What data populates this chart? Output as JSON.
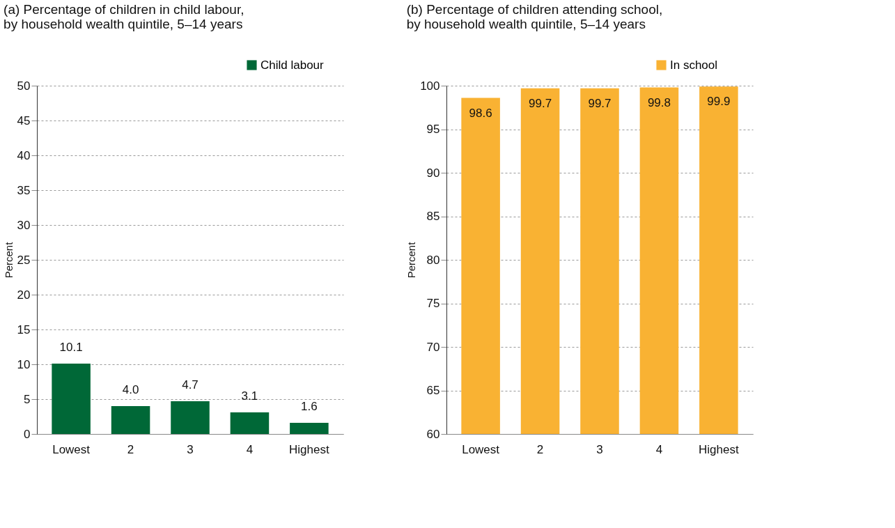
{
  "chart_data": [
    {
      "type": "bar",
      "title": "(a) Percentage of children in child labour,\nby household wealth quintile, 5–14 years",
      "ylabel": "Percent",
      "categories": [
        "Lowest",
        "2",
        "3",
        "4",
        "Highest"
      ],
      "series": [
        {
          "name": "Child labour",
          "color": "#006837",
          "values": [
            10.1,
            4.0,
            4.7,
            3.1,
            1.6
          ],
          "value_labels": [
            "10.1",
            "4.0",
            "4.7",
            "3.1",
            "1.6"
          ]
        }
      ],
      "ylim": [
        0,
        50
      ],
      "yticks": [
        0,
        5,
        10,
        15,
        20,
        25,
        30,
        35,
        40,
        45,
        50
      ],
      "grid": "y",
      "legend": "top right"
    },
    {
      "type": "bar",
      "title": "(b) Percentage of children attending school,\nby household wealth quintile, 5–14 years",
      "ylabel": "Percent",
      "categories": [
        "Lowest",
        "2",
        "3",
        "4",
        "Highest"
      ],
      "series": [
        {
          "name": "In school",
          "color": "#f9b233",
          "values": [
            98.6,
            99.7,
            99.7,
            99.8,
            99.9
          ],
          "value_labels": [
            "98.6",
            "99.7",
            "99.7",
            "99.8",
            "99.9"
          ]
        }
      ],
      "ylim": [
        60,
        100
      ],
      "yticks": [
        60,
        65,
        70,
        75,
        80,
        85,
        90,
        95,
        100
      ],
      "grid": "y",
      "legend": "top right"
    }
  ]
}
